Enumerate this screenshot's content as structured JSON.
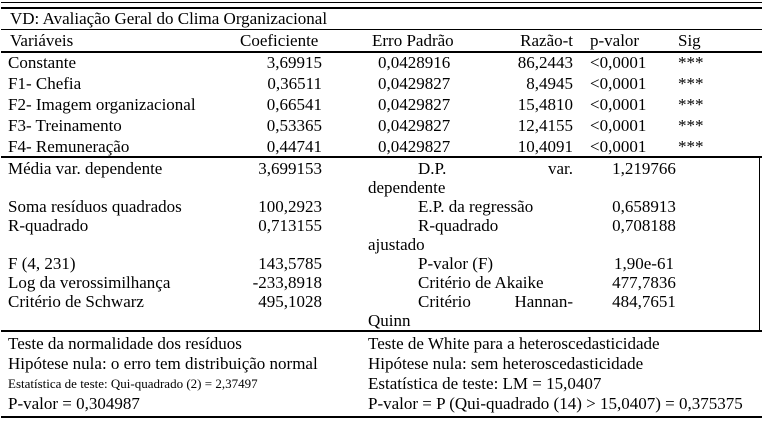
{
  "title": "VD: Avaliação Geral do Clima Organizacional",
  "header": {
    "variaveis": "Variáveis",
    "coeficiente": "Coeficiente",
    "erro_padrao": "Erro Padrão",
    "razao_t": "Razão-t",
    "p_valor": "p-valor",
    "sig": "Sig"
  },
  "coefficients": [
    {
      "variable": "Constante",
      "coef": "3,69915",
      "se": "0,0428916",
      "t": "86,2443",
      "p": "<0,0001",
      "sig": "***"
    },
    {
      "variable": "F1- Chefia",
      "coef": "0,36511",
      "se": "0,0429827",
      "t": "8,4945",
      "p": "<0,0001",
      "sig": "***"
    },
    {
      "variable": "F2- Imagem organizacional",
      "coef": "0,66541",
      "se": "0,0429827",
      "t": "15,4810",
      "p": "<0,0001",
      "sig": "***"
    },
    {
      "variable": "F3- Treinamento",
      "coef": "0,53365",
      "se": "0,0429827",
      "t": "12,4155",
      "p": "<0,0001",
      "sig": "***"
    },
    {
      "variable": "F4- Remuneração",
      "coef": "0,44741",
      "se": "0,0429827",
      "t": "10,4091",
      "p": "<0,0001",
      "sig": "***"
    }
  ],
  "stats": [
    {
      "left_label": "Média var. dependente",
      "left_value": "3,699153",
      "right_label_lines": [
        "D.P. var.",
        "dependente"
      ],
      "right_label": "D.P. var. dependente",
      "right_value": "1,219766"
    },
    {
      "left_label": "Soma resíduos quadrados",
      "left_value": "100,2923",
      "right_label_lines": [
        "E.P. da regressão"
      ],
      "right_label": "E.P. da regressão",
      "right_value": "0,658913"
    },
    {
      "left_label": "R-quadrado",
      "left_value": "0,713155",
      "right_label_lines": [
        "R-quadrado",
        "ajustado"
      ],
      "right_label": "R-quadrado ajustado",
      "right_value": "0,708188"
    },
    {
      "left_label": "F (4, 231)",
      "left_value": "143,5785",
      "right_label_lines": [
        "P-valor (F)"
      ],
      "right_label": "P-valor (F)",
      "right_value": "1,90e-61"
    },
    {
      "left_label": "Log da verossimilhança",
      "left_value": "-233,8918",
      "right_label_lines": [
        "Critério de Akaike"
      ],
      "right_label": "Critério de Akaike",
      "right_value": "477,7836"
    },
    {
      "left_label": "Critério de Schwarz",
      "left_value": "495,1028",
      "right_label_lines": [
        "Critério Hannan-",
        "Quinn"
      ],
      "right_label": "Critério Hannan-Quinn",
      "right_value": "484,7651"
    }
  ],
  "tests": {
    "left_lines": [
      {
        "text": "Teste da normalidade dos resíduos",
        "small": false
      },
      {
        "text": "Hipótese nula: o erro tem distribuição normal",
        "small": false
      },
      {
        "text": "Estatística de teste: Qui-quadrado (2) = 2,37497",
        "small": true
      },
      {
        "text": "P-valor = 0,304987",
        "small": false
      }
    ],
    "right_lines": [
      "Teste de White para a heteroscedasticidade",
      "Hipótese nula: sem heteroscedasticidade",
      "Estatística de teste: LM = 15,0407",
      "P-valor = P (Qui-quadrado (14) > 15,0407) = 0,375375"
    ]
  },
  "colors": {
    "text": "#000000",
    "background": "#ffffff",
    "rule": "#000000"
  }
}
